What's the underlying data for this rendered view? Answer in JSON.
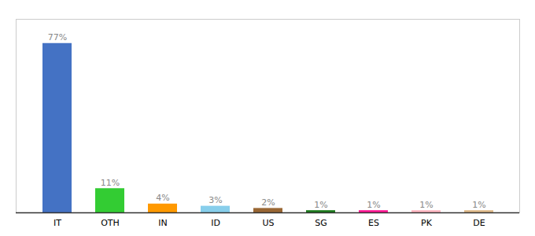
{
  "chart_data": {
    "type": "bar",
    "categories": [
      "IT",
      "OTH",
      "IN",
      "ID",
      "US",
      "SG",
      "ES",
      "PK",
      "DE"
    ],
    "values": [
      77,
      11,
      4,
      3,
      2,
      1,
      1,
      1,
      1
    ],
    "value_labels": [
      "77%",
      "11%",
      "4%",
      "3%",
      "2%",
      "1%",
      "1%",
      "1%",
      "1%"
    ],
    "colors": [
      "#4472c4",
      "#33cc33",
      "#ff9900",
      "#87ceeb",
      "#996633",
      "#1a7a1a",
      "#ff1493",
      "#ffb6c1",
      "#deb887"
    ],
    "ylim": [
      0,
      88
    ],
    "data_labels": true,
    "tick_labels": "x",
    "grid": false
  }
}
